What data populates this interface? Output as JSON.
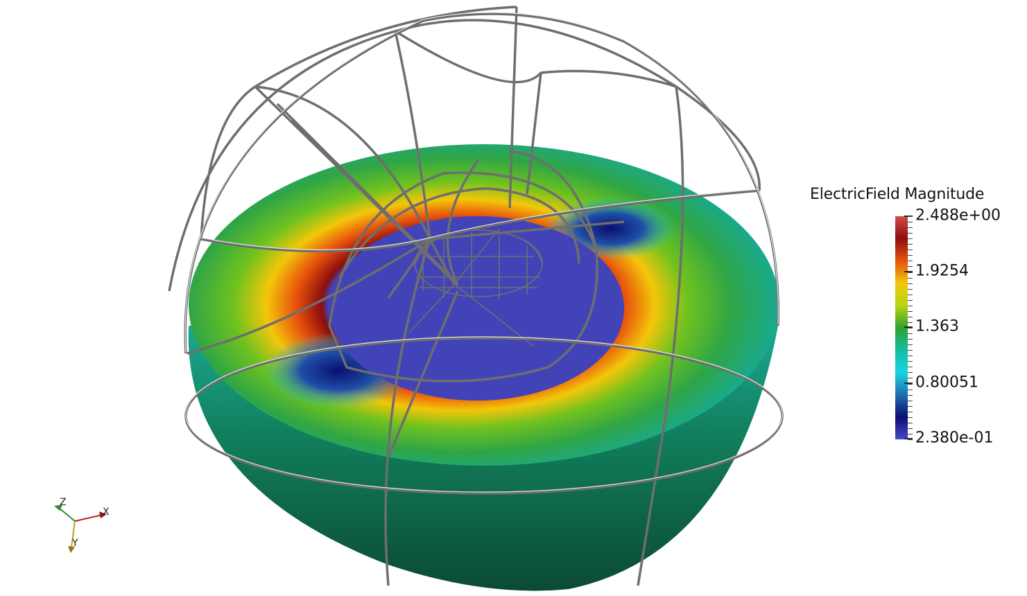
{
  "scalar_bar": {
    "title": "ElectricField Magnitude",
    "labels": [
      "2.488e+00",
      "1.9254",
      "1.363",
      "0.80051",
      "2.380e-01"
    ],
    "colors": [
      "#d44a4a",
      "#8b0e0e",
      "#e8520c",
      "#f3c60a",
      "#b8d514",
      "#2fa12f",
      "#12bda3",
      "#1cd3e0",
      "#1f6eb0",
      "#0a0f6e",
      "#4848cc"
    ]
  },
  "axes": {
    "x": "X",
    "y": "Y",
    "z": "Z"
  },
  "colors": {
    "wire": "#6e6e6e",
    "disc_inner": "#4343b8",
    "side_dark": "#0d4f35"
  }
}
